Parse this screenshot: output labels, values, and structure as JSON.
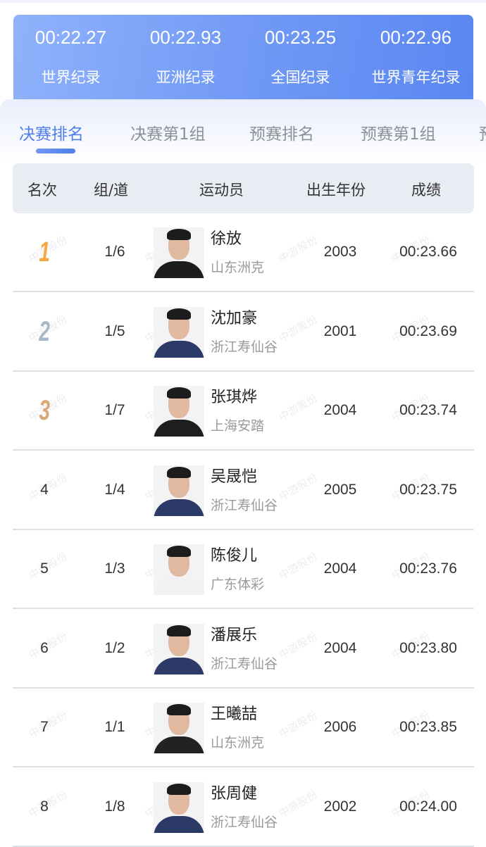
{
  "records": [
    {
      "time": "00:22.27",
      "label": "世界纪录"
    },
    {
      "time": "00:22.93",
      "label": "亚洲纪录"
    },
    {
      "time": "00:23.25",
      "label": "全国纪录"
    },
    {
      "time": "00:22.96",
      "label": "世界青年纪录"
    }
  ],
  "tabs": [
    {
      "label": "决赛排名",
      "active": true
    },
    {
      "label": "决赛第1组"
    },
    {
      "label": "预赛排名"
    },
    {
      "label": "预赛第1组"
    },
    {
      "label": "预"
    }
  ],
  "table": {
    "headers": [
      "名次",
      "组/道",
      "运动员",
      "出生年份",
      "成绩"
    ],
    "rows": [
      {
        "rank": "1",
        "lane": "1/6",
        "name": "徐放",
        "team": "山东洲克",
        "year": "2003",
        "time": "00:23.66"
      },
      {
        "rank": "2",
        "lane": "1/5",
        "name": "沈加豪",
        "team": "浙江寿仙谷",
        "year": "2001",
        "time": "00:23.69"
      },
      {
        "rank": "3",
        "lane": "1/7",
        "name": "张琪烨",
        "team": "上海安踏",
        "year": "2004",
        "time": "00:23.74"
      },
      {
        "rank": "4",
        "lane": "1/4",
        "name": "吴晟恺",
        "team": "浙江寿仙谷",
        "year": "2005",
        "time": "00:23.75"
      },
      {
        "rank": "5",
        "lane": "1/3",
        "name": "陈俊儿",
        "team": "广东体彩",
        "year": "2004",
        "time": "00:23.76"
      },
      {
        "rank": "6",
        "lane": "1/2",
        "name": "潘展乐",
        "team": "浙江寿仙谷",
        "year": "2004",
        "time": "00:23.80"
      },
      {
        "rank": "7",
        "lane": "1/1",
        "name": "王曦喆",
        "team": "山东洲克",
        "year": "2006",
        "time": "00:23.85"
      },
      {
        "rank": "8",
        "lane": "1/8",
        "name": "张周健",
        "team": "浙江寿仙谷",
        "year": "2002",
        "time": "00:24.00"
      }
    ]
  },
  "watermark": "中游股份",
  "colors": {
    "accent": "#4f7fe8",
    "gold": "#f5a742",
    "silver": "#a9b8c9",
    "bronze": "#d9a874"
  }
}
